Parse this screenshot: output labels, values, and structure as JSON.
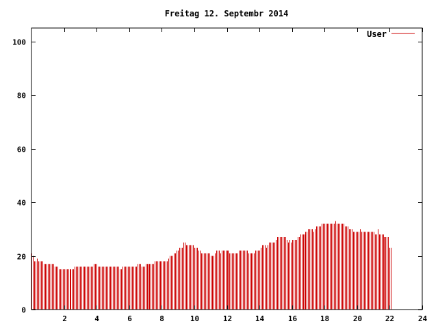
{
  "chart_data": {
    "type": "bar",
    "title": "Freitag 12. Septembr 2014",
    "xlabel": "",
    "ylabel": "",
    "xlim": [
      0,
      24
    ],
    "ylim": [
      0,
      105
    ],
    "x_ticks": [
      2,
      4,
      6,
      8,
      10,
      12,
      14,
      16,
      18,
      20,
      22,
      24
    ],
    "y_ticks": [
      0,
      20,
      40,
      60,
      80,
      100
    ],
    "legend_position": "top-right",
    "grid": false,
    "colors": {
      "series": "#cc0000",
      "axis": "#000000",
      "background": "#ffffff"
    },
    "series": [
      {
        "name": "User",
        "step_minutes": 5,
        "values": [
          21,
          20,
          18,
          18,
          19,
          18,
          18,
          18,
          18,
          17,
          17,
          17,
          17,
          17,
          17,
          17,
          17,
          16,
          16,
          16,
          15,
          15,
          15,
          15,
          15,
          15,
          15,
          15,
          15,
          15,
          15,
          15,
          16,
          16,
          16,
          16,
          16,
          16,
          16,
          16,
          16,
          16,
          16,
          16,
          16,
          16,
          17,
          17,
          17,
          16,
          16,
          16,
          16,
          16,
          16,
          16,
          16,
          16,
          16,
          16,
          16,
          16,
          16,
          16,
          16,
          15,
          15,
          16,
          16,
          16,
          16,
          16,
          16,
          16,
          16,
          16,
          16,
          16,
          17,
          17,
          17,
          16,
          16,
          16,
          17,
          17,
          17,
          17,
          17,
          17,
          17,
          18,
          18,
          18,
          18,
          18,
          18,
          18,
          18,
          18,
          18,
          19,
          20,
          20,
          20,
          21,
          21,
          22,
          22,
          23,
          23,
          23,
          25,
          25,
          24,
          24,
          24,
          24,
          24,
          24,
          23,
          23,
          23,
          22,
          22,
          21,
          21,
          21,
          21,
          21,
          21,
          21,
          20,
          20,
          20,
          21,
          22,
          22,
          22,
          21,
          22,
          22,
          22,
          22,
          22,
          22,
          21,
          21,
          21,
          21,
          21,
          21,
          21,
          22,
          22,
          22,
          22,
          22,
          22,
          22,
          21,
          21,
          21,
          21,
          21,
          22,
          22,
          22,
          22,
          23,
          24,
          24,
          24,
          23,
          24,
          25,
          25,
          25,
          25,
          25,
          26,
          27,
          27,
          27,
          27,
          27,
          27,
          27,
          26,
          25,
          26,
          25,
          26,
          26,
          26,
          26,
          27,
          27,
          28,
          28,
          28,
          28,
          29,
          29,
          30,
          30,
          30,
          30,
          29,
          30,
          31,
          31,
          31,
          31,
          32,
          32,
          32,
          32,
          32,
          32,
          32,
          32,
          32,
          32,
          33,
          32,
          32,
          32,
          32,
          32,
          32,
          31,
          31,
          31,
          30,
          30,
          30,
          29,
          29,
          29,
          29,
          29,
          30,
          29,
          29,
          29,
          29,
          29,
          29,
          29,
          29,
          29,
          29,
          28,
          28,
          30,
          28,
          28,
          28,
          28,
          27,
          27,
          27,
          27,
          23,
          23
        ]
      }
    ]
  }
}
